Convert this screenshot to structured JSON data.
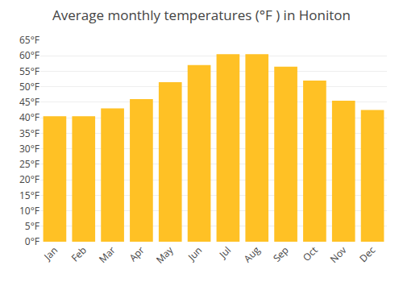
{
  "chart_data": {
    "type": "bar",
    "title": "Average monthly temperatures (°F ) in Honiton",
    "categories": [
      "Jan",
      "Feb",
      "Mar",
      "Apr",
      "May",
      "Jun",
      "Jul",
      "Aug",
      "Sep",
      "Oct",
      "Nov",
      "Dec"
    ],
    "values": [
      40.5,
      40.5,
      43,
      46,
      51.5,
      57,
      60.5,
      60.5,
      56.5,
      52,
      45.5,
      42.5
    ],
    "color": "#FFC125",
    "ylim": [
      0,
      65
    ],
    "yticks": [
      {
        "value": 0,
        "label": "0°F"
      },
      {
        "value": 5,
        "label": "5°F"
      },
      {
        "value": 10,
        "label": "10°F"
      },
      {
        "value": 15,
        "label": "15°F"
      },
      {
        "value": 20,
        "label": "20°F"
      },
      {
        "value": 25,
        "label": "25°F"
      },
      {
        "value": 30,
        "label": "30°F"
      },
      {
        "value": 35,
        "label": "35°F"
      },
      {
        "value": 40,
        "label": "40°F"
      },
      {
        "value": 45,
        "label": "45°F"
      },
      {
        "value": 50,
        "label": "50°F"
      },
      {
        "value": 55,
        "label": "55°F"
      },
      {
        "value": 60,
        "label": "60°F"
      },
      {
        "value": 65,
        "label": "65°F"
      }
    ],
    "grid": true
  }
}
